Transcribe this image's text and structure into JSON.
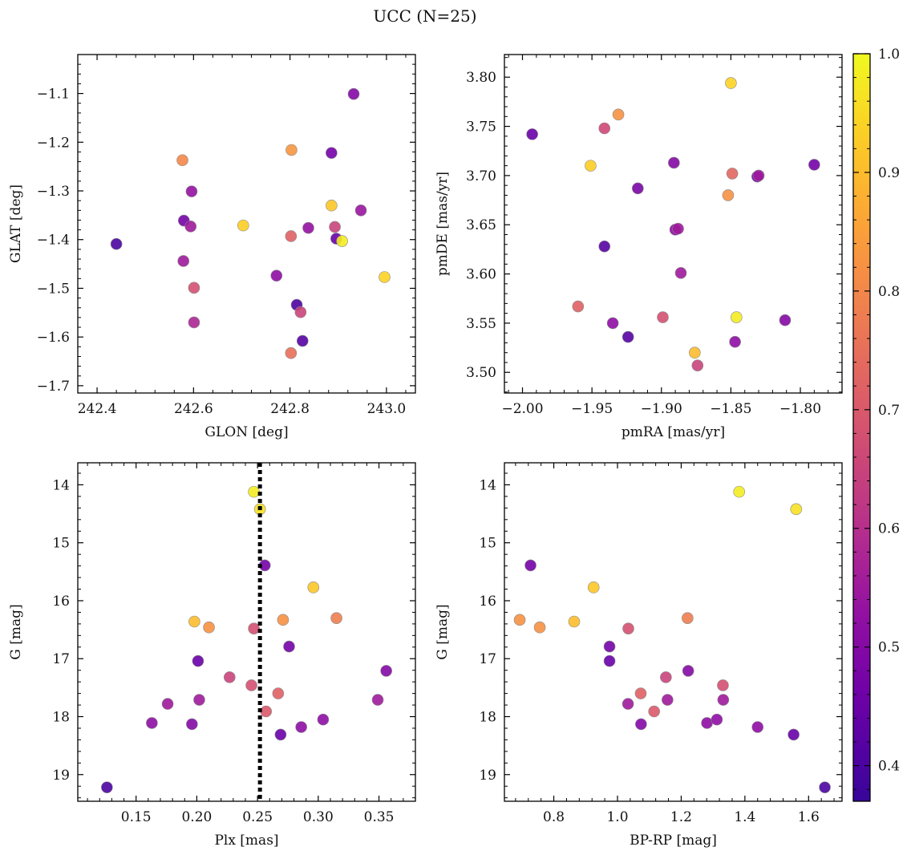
{
  "title": "UCC (N=25)",
  "colorbar": {
    "min": 0.37,
    "max": 1.0,
    "ticks": [
      0.4,
      0.5,
      0.6,
      0.7,
      0.8,
      0.9,
      1.0
    ],
    "tick_labels": [
      "0.4",
      "0.5",
      "0.6",
      "0.7",
      "0.8",
      "0.9",
      "1.0"
    ],
    "colormap": "plasma"
  },
  "chart_data": [
    {
      "type": "scatter",
      "name": "position",
      "xlabel": "GLON [deg]",
      "ylabel": "GLAT [deg]",
      "xlim": [
        242.36,
        243.06
      ],
      "ylim": [
        -1.715,
        -1.02
      ],
      "xticks": [
        242.4,
        242.6,
        242.8,
        243.0
      ],
      "xtick_labels": [
        "242.4",
        "242.6",
        "242.8",
        "243.0"
      ],
      "yticks": [
        -1.7,
        -1.6,
        -1.5,
        -1.4,
        -1.3,
        -1.2,
        -1.1
      ],
      "ytick_labels": [
        "−1.7",
        "−1.6",
        "−1.5",
        "−1.4",
        "−1.3",
        "−1.2",
        "−1.1"
      ],
      "points": [
        {
          "x": 242.44,
          "y": -1.409,
          "c": 0.4
        },
        {
          "x": 242.577,
          "y": -1.237,
          "c": 0.8
        },
        {
          "x": 242.58,
          "y": -1.361,
          "c": 0.47
        },
        {
          "x": 242.594,
          "y": -1.373,
          "c": 0.55
        },
        {
          "x": 242.596,
          "y": -1.301,
          "c": 0.53
        },
        {
          "x": 242.579,
          "y": -1.444,
          "c": 0.55
        },
        {
          "x": 242.601,
          "y": -1.499,
          "c": 0.68
        },
        {
          "x": 242.601,
          "y": -1.57,
          "c": 0.58
        },
        {
          "x": 242.703,
          "y": -1.371,
          "c": 0.93
        },
        {
          "x": 242.772,
          "y": -1.474,
          "c": 0.52
        },
        {
          "x": 242.803,
          "y": -1.216,
          "c": 0.83
        },
        {
          "x": 242.802,
          "y": -1.393,
          "c": 0.72
        },
        {
          "x": 242.802,
          "y": -1.633,
          "c": 0.75
        },
        {
          "x": 242.814,
          "y": -1.534,
          "c": 0.4
        },
        {
          "x": 242.822,
          "y": -1.549,
          "c": 0.65
        },
        {
          "x": 242.826,
          "y": -1.608,
          "c": 0.42
        },
        {
          "x": 242.838,
          "y": -1.376,
          "c": 0.53
        },
        {
          "x": 242.886,
          "y": -1.222,
          "c": 0.47
        },
        {
          "x": 242.886,
          "y": -1.33,
          "c": 0.92
        },
        {
          "x": 242.893,
          "y": -1.374,
          "c": 0.65
        },
        {
          "x": 242.896,
          "y": -1.398,
          "c": 0.45
        },
        {
          "x": 242.908,
          "y": -1.403,
          "c": 0.98
        },
        {
          "x": 242.932,
          "y": -1.101,
          "c": 0.5
        },
        {
          "x": 242.947,
          "y": -1.34,
          "c": 0.54
        },
        {
          "x": 242.996,
          "y": -1.477,
          "c": 0.94
        }
      ]
    },
    {
      "type": "scatter",
      "name": "proper-motion",
      "xlabel": "pmRA [mas/yr]",
      "ylabel": "pmDE [mas/yr]",
      "xlim": [
        -2.013,
        -1.77
      ],
      "ylim": [
        3.479,
        3.823
      ],
      "xticks": [
        -2.0,
        -1.95,
        -1.9,
        -1.85,
        -1.8
      ],
      "xtick_labels": [
        "−2.00",
        "−1.95",
        "−1.90",
        "−1.85",
        "−1.80"
      ],
      "yticks": [
        3.5,
        3.55,
        3.6,
        3.65,
        3.7,
        3.75,
        3.8
      ],
      "ytick_labels": [
        "3.50",
        "3.55",
        "3.60",
        "3.65",
        "3.70",
        "3.75",
        "3.80"
      ],
      "points": [
        {
          "x": -1.993,
          "y": 3.742,
          "c": 0.45
        },
        {
          "x": -1.96,
          "y": 3.567,
          "c": 0.72
        },
        {
          "x": -1.951,
          "y": 3.71,
          "c": 0.93
        },
        {
          "x": -1.941,
          "y": 3.748,
          "c": 0.66
        },
        {
          "x": -1.941,
          "y": 3.628,
          "c": 0.42
        },
        {
          "x": -1.935,
          "y": 3.55,
          "c": 0.52
        },
        {
          "x": -1.931,
          "y": 3.762,
          "c": 0.82
        },
        {
          "x": -1.924,
          "y": 3.536,
          "c": 0.42
        },
        {
          "x": -1.917,
          "y": 3.687,
          "c": 0.48
        },
        {
          "x": -1.899,
          "y": 3.556,
          "c": 0.68
        },
        {
          "x": -1.891,
          "y": 3.713,
          "c": 0.5
        },
        {
          "x": -1.89,
          "y": 3.645,
          "c": 0.52
        },
        {
          "x": -1.888,
          "y": 3.646,
          "c": 0.55
        },
        {
          "x": -1.886,
          "y": 3.601,
          "c": 0.55
        },
        {
          "x": -1.876,
          "y": 3.52,
          "c": 0.9
        },
        {
          "x": -1.874,
          "y": 3.507,
          "c": 0.65
        },
        {
          "x": -1.852,
          "y": 3.68,
          "c": 0.82
        },
        {
          "x": -1.85,
          "y": 3.794,
          "c": 0.94
        },
        {
          "x": -1.849,
          "y": 3.702,
          "c": 0.73
        },
        {
          "x": -1.847,
          "y": 3.531,
          "c": 0.52
        },
        {
          "x": -1.846,
          "y": 3.556,
          "c": 0.98
        },
        {
          "x": -1.831,
          "y": 3.699,
          "c": 0.47
        },
        {
          "x": -1.83,
          "y": 3.7,
          "c": 0.55
        },
        {
          "x": -1.811,
          "y": 3.553,
          "c": 0.5
        },
        {
          "x": -1.79,
          "y": 3.711,
          "c": 0.47
        }
      ]
    },
    {
      "type": "scatter",
      "name": "parallax-magnitude",
      "xlabel": "Plx [mas]",
      "ylabel": "G [mag]",
      "xlim": [
        0.102,
        0.38
      ],
      "ylim": [
        19.46,
        13.62
      ],
      "y_inverted": true,
      "xticks": [
        0.15,
        0.2,
        0.25,
        0.3,
        0.35
      ],
      "xtick_labels": [
        "0.15",
        "0.20",
        "0.25",
        "0.30",
        "0.35"
      ],
      "yticks": [
        14,
        15,
        16,
        17,
        18,
        19
      ],
      "ytick_labels": [
        "14",
        "15",
        "16",
        "17",
        "18",
        "19"
      ],
      "vline": {
        "x": 0.252,
        "style": "dotted",
        "color": "#000000"
      },
      "points": [
        {
          "x": 0.126,
          "y": 19.22,
          "c": 0.4
        },
        {
          "x": 0.163,
          "y": 18.11,
          "c": 0.52
        },
        {
          "x": 0.176,
          "y": 17.78,
          "c": 0.55
        },
        {
          "x": 0.196,
          "y": 18.13,
          "c": 0.5
        },
        {
          "x": 0.198,
          "y": 16.36,
          "c": 0.9
        },
        {
          "x": 0.201,
          "y": 17.04,
          "c": 0.45
        },
        {
          "x": 0.202,
          "y": 17.71,
          "c": 0.55
        },
        {
          "x": 0.21,
          "y": 16.46,
          "c": 0.82
        },
        {
          "x": 0.227,
          "y": 17.32,
          "c": 0.65
        },
        {
          "x": 0.245,
          "y": 17.46,
          "c": 0.68
        },
        {
          "x": 0.247,
          "y": 14.12,
          "c": 0.98
        },
        {
          "x": 0.247,
          "y": 16.48,
          "c": 0.68
        },
        {
          "x": 0.252,
          "y": 14.42,
          "c": 0.96
        },
        {
          "x": 0.256,
          "y": 15.39,
          "c": 0.47
        },
        {
          "x": 0.257,
          "y": 17.91,
          "c": 0.7
        },
        {
          "x": 0.267,
          "y": 17.6,
          "c": 0.72
        },
        {
          "x": 0.269,
          "y": 18.31,
          "c": 0.45
        },
        {
          "x": 0.271,
          "y": 16.33,
          "c": 0.82
        },
        {
          "x": 0.276,
          "y": 16.79,
          "c": 0.47
        },
        {
          "x": 0.286,
          "y": 18.18,
          "c": 0.52
        },
        {
          "x": 0.296,
          "y": 15.77,
          "c": 0.92
        },
        {
          "x": 0.304,
          "y": 18.05,
          "c": 0.52
        },
        {
          "x": 0.315,
          "y": 16.3,
          "c": 0.78
        },
        {
          "x": 0.349,
          "y": 17.71,
          "c": 0.55
        },
        {
          "x": 0.356,
          "y": 17.21,
          "c": 0.5
        }
      ]
    },
    {
      "type": "scatter",
      "name": "color-magnitude",
      "xlabel": "BP-RP [mag]",
      "ylabel": "G [mag]",
      "xlim": [
        0.645,
        1.705
      ],
      "ylim": [
        19.46,
        13.62
      ],
      "y_inverted": true,
      "xticks": [
        0.8,
        1.0,
        1.2,
        1.4,
        1.6
      ],
      "xtick_labels": [
        "0.8",
        "1.0",
        "1.2",
        "1.4",
        "1.6"
      ],
      "yticks": [
        14,
        15,
        16,
        17,
        18,
        19
      ],
      "ytick_labels": [
        "14",
        "15",
        "16",
        "17",
        "18",
        "19"
      ],
      "points": [
        {
          "x": 0.693,
          "y": 16.33,
          "c": 0.82
        },
        {
          "x": 0.727,
          "y": 15.39,
          "c": 0.47
        },
        {
          "x": 0.756,
          "y": 16.46,
          "c": 0.82
        },
        {
          "x": 0.864,
          "y": 16.36,
          "c": 0.9
        },
        {
          "x": 0.925,
          "y": 15.77,
          "c": 0.92
        },
        {
          "x": 0.975,
          "y": 16.79,
          "c": 0.47
        },
        {
          "x": 0.975,
          "y": 17.04,
          "c": 0.45
        },
        {
          "x": 1.033,
          "y": 17.78,
          "c": 0.55
        },
        {
          "x": 1.034,
          "y": 16.48,
          "c": 0.68
        },
        {
          "x": 1.073,
          "y": 17.6,
          "c": 0.72
        },
        {
          "x": 1.074,
          "y": 18.13,
          "c": 0.5
        },
        {
          "x": 1.115,
          "y": 17.91,
          "c": 0.7
        },
        {
          "x": 1.152,
          "y": 17.32,
          "c": 0.65
        },
        {
          "x": 1.157,
          "y": 17.71,
          "c": 0.55
        },
        {
          "x": 1.22,
          "y": 16.3,
          "c": 0.78
        },
        {
          "x": 1.222,
          "y": 17.21,
          "c": 0.5
        },
        {
          "x": 1.281,
          "y": 18.11,
          "c": 0.52
        },
        {
          "x": 1.312,
          "y": 18.05,
          "c": 0.52
        },
        {
          "x": 1.331,
          "y": 17.46,
          "c": 0.68
        },
        {
          "x": 1.332,
          "y": 17.71,
          "c": 0.55
        },
        {
          "x": 1.382,
          "y": 14.12,
          "c": 0.98
        },
        {
          "x": 1.44,
          "y": 18.18,
          "c": 0.52
        },
        {
          "x": 1.553,
          "y": 18.31,
          "c": 0.45
        },
        {
          "x": 1.561,
          "y": 14.42,
          "c": 0.96
        },
        {
          "x": 1.651,
          "y": 19.22,
          "c": 0.4
        }
      ]
    }
  ]
}
